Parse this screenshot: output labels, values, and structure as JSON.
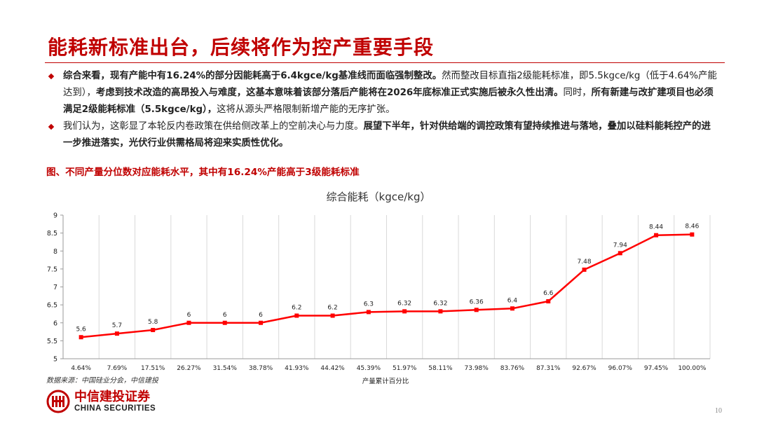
{
  "slide": {
    "title": "能耗新标准出台，后续将作为控产重要手段",
    "page_number": "10"
  },
  "bullets": [
    {
      "segments": [
        {
          "text": "综合来看，现有产能中有16.24%的部分因能耗高于6.4kgce/kg基准线而面临强制整改。",
          "bold": true
        },
        {
          "text": "然而整改目标直指2级能耗标准，即5.5kgce/kg（低于4.64%产能达到），",
          "bold": false
        },
        {
          "text": "考虑到技术改造的高昂投入与难度，这基本意味着该部分落后产能将在2026年底标准正式实施后被永久性出清。",
          "bold": true
        },
        {
          "text": "同时，",
          "bold": false
        },
        {
          "text": "所有新建与改扩建项目也必须满足2级能耗标准（5.5kgce/kg），",
          "bold": true
        },
        {
          "text": "这将从源头严格限制新增产能的无序扩张。",
          "bold": false
        }
      ]
    },
    {
      "segments": [
        {
          "text": "我们认为，这彰显了本轮反内卷政策在供给侧改革上的空前决心与力度。",
          "bold": false
        },
        {
          "text": "展望下半年，针对供给端的调控政策有望持续推进与落地，叠加以硅料能耗控产的进一步推进落实，光伏行业供需格局将迎来实质性优化。",
          "bold": true
        }
      ]
    }
  ],
  "figure": {
    "title": "图、不同产量分位数对应能耗水平，其中有16.24%产能高于3级能耗标准",
    "source": "数据来源：中国硅业分会，中信建投"
  },
  "chart_data": {
    "type": "line",
    "title": "综合能耗（kgce/kg）",
    "xlabel": "产量累计百分比",
    "ylabel": "",
    "categories": [
      "4.64%",
      "7.69%",
      "17.51%",
      "26.27%",
      "31.54%",
      "38.78%",
      "41.93%",
      "44.42%",
      "45.39%",
      "51.97%",
      "58.11%",
      "73.98%",
      "83.76%",
      "87.31%",
      "92.67%",
      "96.07%",
      "97.45%",
      "100.00%"
    ],
    "series": [
      {
        "values": [
          5.6,
          5.7,
          5.8,
          6,
          6,
          6,
          6.2,
          6.2,
          6.3,
          6.32,
          6.32,
          6.36,
          6.4,
          6.6,
          7.48,
          7.94,
          8.44,
          8.46
        ],
        "color": "#ff0000"
      }
    ],
    "ylim": [
      5,
      9
    ],
    "yticks": [
      "5",
      "5.5",
      "6",
      "6.5",
      "7",
      "7.5",
      "8",
      "8.5",
      "9"
    ],
    "data_labels": [
      "5.6",
      "5.7",
      "5.8",
      "6",
      "6",
      "6",
      "6.2",
      "6.2",
      "6.3",
      "6.32",
      "6.32",
      "6.36",
      "6.4",
      "6.6",
      "7.48",
      "7.94",
      "8.44",
      "8.46"
    ],
    "grid": "vertical",
    "legend": "none"
  },
  "logo": {
    "cn": "中信建投证券",
    "en": "CHINA SECURITIES"
  },
  "colors": {
    "accent": "#c00000",
    "series": "#ff0000"
  }
}
